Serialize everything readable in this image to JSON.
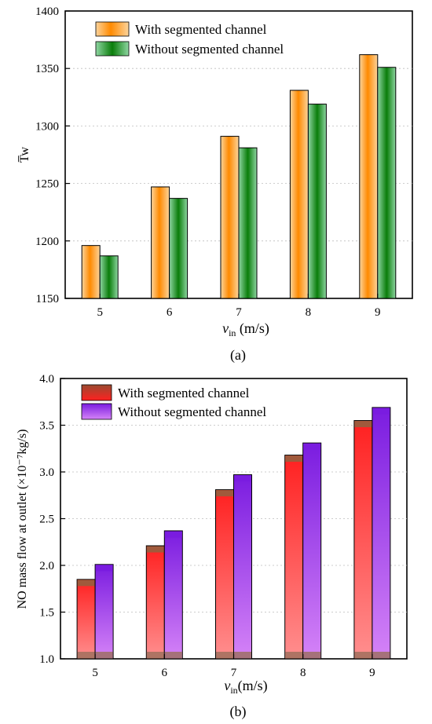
{
  "chart_data": [
    {
      "type": "bar",
      "panel_label": "(a)",
      "ylabel": "T̅w",
      "xlabel_main": "v",
      "xlabel_sub": "in",
      "xlabel_unit": " (m/s)",
      "categories": [
        "5",
        "6",
        "7",
        "8",
        "9"
      ],
      "ylim": [
        1150,
        1400
      ],
      "yticks": [
        1150,
        1200,
        1250,
        1300,
        1350,
        1400
      ],
      "grid": true,
      "legend_position": "top-left",
      "series": [
        {
          "name": "With segmented channel",
          "values": [
            1196,
            1247,
            1291,
            1331,
            1362
          ],
          "colors": [
            "#ff8a00",
            "#fdd5a0"
          ]
        },
        {
          "name": "Without segmented channel",
          "values": [
            1187,
            1237,
            1281,
            1319,
            1351
          ],
          "colors": [
            "#0a7d0a",
            "#8fd6a3"
          ]
        }
      ]
    },
    {
      "type": "bar",
      "panel_label": "(b)",
      "ylabel": "NO mass flow at outlet (×10⁻⁷kg/s)",
      "xlabel_main": "v",
      "xlabel_sub": "in",
      "xlabel_unit": "(m/s)",
      "categories": [
        "5",
        "6",
        "7",
        "8",
        "9"
      ],
      "ylim": [
        1.0,
        4.0
      ],
      "yticks": [
        "1.0",
        "1.5",
        "2.0",
        "2.5",
        "3.0",
        "3.5",
        "4.0"
      ],
      "grid": true,
      "legend_position": "top-left",
      "series": [
        {
          "name": "With segmented channel",
          "values": [
            1.85,
            2.21,
            2.81,
            3.18,
            3.55
          ],
          "colors": [
            "#ff1a1a",
            "#a05a3c"
          ]
        },
        {
          "name": "Without segmented channel",
          "values": [
            2.01,
            2.37,
            2.97,
            3.31,
            3.69
          ],
          "colors": [
            "#7a1ce0",
            "#cf7af5"
          ]
        }
      ]
    }
  ]
}
